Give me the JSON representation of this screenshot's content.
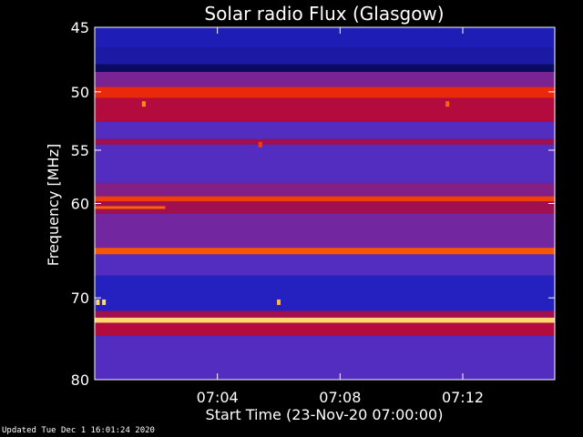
{
  "chart_data": {
    "type": "heatmap",
    "title": "Solar radio Flux (Glasgow)",
    "xlabel": "Start Time (23-Nov-20 07:00:00)",
    "ylabel": "Frequency [MHz]",
    "x_range_minutes": [
      0,
      15
    ],
    "y_range_mhz": [
      45,
      80
    ],
    "x_ticks": [
      {
        "minute": 4,
        "label": "07:04"
      },
      {
        "minute": 8,
        "label": "07:08"
      },
      {
        "minute": 12,
        "label": "07:12"
      }
    ],
    "y_ticks": [
      {
        "mhz": 45,
        "label": "45"
      },
      {
        "mhz": 50,
        "label": "50"
      },
      {
        "mhz": 55,
        "label": "55"
      },
      {
        "mhz": 60,
        "label": "60"
      },
      {
        "mhz": 70,
        "label": "70"
      },
      {
        "mhz": 80,
        "label": "80"
      }
    ],
    "y_scale": "log",
    "colormap": [
      "#0a0a60",
      "#2020c0",
      "#6030c0",
      "#a01050",
      "#e00010",
      "#ff8000",
      "#ffffa0"
    ],
    "bands": [
      {
        "mhz_from": 45.0,
        "mhz_to": 46.5,
        "level": 0.15
      },
      {
        "mhz_from": 46.5,
        "mhz_to": 47.8,
        "level": 0.12
      },
      {
        "mhz_from": 47.8,
        "mhz_to": 48.4,
        "level": 0.0
      },
      {
        "mhz_from": 48.4,
        "mhz_to": 49.6,
        "level": 0.4
      },
      {
        "mhz_from": 49.6,
        "mhz_to": 50.5,
        "level": 0.72
      },
      {
        "mhz_from": 50.5,
        "mhz_to": 52.5,
        "level": 0.55
      },
      {
        "mhz_from": 52.5,
        "mhz_to": 54.0,
        "level": 0.3
      },
      {
        "mhz_from": 54.0,
        "mhz_to": 54.5,
        "level": 0.5
      },
      {
        "mhz_from": 54.5,
        "mhz_to": 58.0,
        "level": 0.3
      },
      {
        "mhz_from": 58.0,
        "mhz_to": 59.3,
        "level": 0.42
      },
      {
        "mhz_from": 59.3,
        "mhz_to": 59.8,
        "level": 0.75
      },
      {
        "mhz_from": 59.8,
        "mhz_to": 61.0,
        "level": 0.5
      },
      {
        "mhz_from": 61.0,
        "mhz_to": 64.5,
        "level": 0.38
      },
      {
        "mhz_from": 64.5,
        "mhz_to": 65.2,
        "level": 0.78
      },
      {
        "mhz_from": 65.2,
        "mhz_to": 67.5,
        "level": 0.3
      },
      {
        "mhz_from": 67.5,
        "mhz_to": 71.5,
        "level": 0.18
      },
      {
        "mhz_from": 71.5,
        "mhz_to": 72.3,
        "level": 0.5
      },
      {
        "mhz_from": 72.3,
        "mhz_to": 72.9,
        "level": 0.95
      },
      {
        "mhz_from": 72.9,
        "mhz_to": 74.5,
        "level": 0.55
      },
      {
        "mhz_from": 74.5,
        "mhz_to": 80.0,
        "level": 0.3
      }
    ],
    "bursts": [
      {
        "minute": 0.1,
        "mhz": 70.5,
        "level": 0.95
      },
      {
        "minute": 0.3,
        "mhz": 70.5,
        "level": 0.95
      },
      {
        "minute": 1.6,
        "mhz": 51.0,
        "level": 0.85
      },
      {
        "minute": 5.4,
        "mhz": 54.5,
        "level": 0.75
      },
      {
        "minute": 6.0,
        "mhz": 70.5,
        "level": 0.9
      },
      {
        "minute": 11.5,
        "mhz": 51.0,
        "level": 0.8
      }
    ],
    "streak": {
      "minute_from": 0.0,
      "minute_to": 2.3,
      "mhz": 60.4,
      "level": 0.8
    }
  },
  "footer": "Updated Tue Dec  1 16:01:24 2020"
}
